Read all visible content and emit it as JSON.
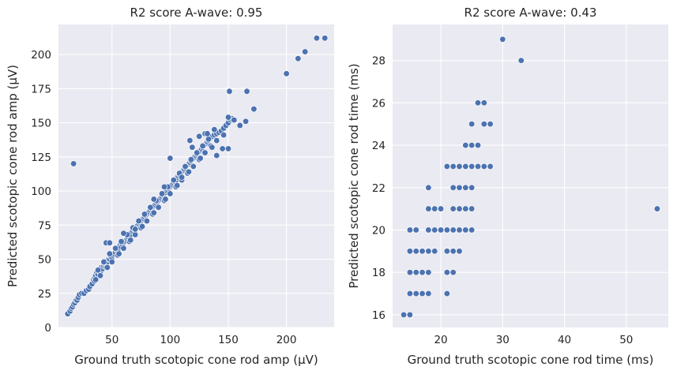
{
  "chart_data": [
    {
      "type": "scatter",
      "title": "R2 score A-wave: 0.95",
      "xlabel": "Ground truth scotopic cone rod amp (µV)",
      "ylabel": "Predicted scotopic cone rod amp (µV)",
      "xlim": [
        4,
        241
      ],
      "ylim": [
        0,
        222
      ],
      "xticks": [
        50,
        100,
        150,
        200
      ],
      "yticks": [
        0,
        25,
        50,
        75,
        100,
        125,
        150,
        175,
        200
      ],
      "grid": true,
      "color": "#4c72b0",
      "points": [
        [
          12,
          10
        ],
        [
          14,
          12
        ],
        [
          15,
          14
        ],
        [
          16,
          15
        ],
        [
          17,
          17
        ],
        [
          18,
          18
        ],
        [
          19,
          20
        ],
        [
          20,
          20
        ],
        [
          21,
          22
        ],
        [
          22,
          24
        ],
        [
          24,
          25
        ],
        [
          26,
          25
        ],
        [
          28,
          27
        ],
        [
          30,
          28
        ],
        [
          31,
          30
        ],
        [
          33,
          32
        ],
        [
          34,
          35
        ],
        [
          35,
          36
        ],
        [
          36,
          38
        ],
        [
          37,
          40
        ],
        [
          38,
          39
        ],
        [
          39,
          41
        ],
        [
          40,
          40
        ],
        [
          41,
          44
        ],
        [
          42,
          43
        ],
        [
          43,
          45
        ],
        [
          44,
          46
        ],
        [
          45,
          47
        ],
        [
          46,
          48
        ],
        [
          47,
          50
        ],
        [
          48,
          50
        ],
        [
          49,
          52
        ],
        [
          50,
          51
        ],
        [
          51,
          53
        ],
        [
          52,
          54
        ],
        [
          53,
          55
        ],
        [
          54,
          57
        ],
        [
          55,
          56
        ],
        [
          56,
          58
        ],
        [
          57,
          60
        ],
        [
          58,
          59
        ],
        [
          59,
          61
        ],
        [
          60,
          62
        ],
        [
          61,
          63
        ],
        [
          62,
          64
        ],
        [
          63,
          65
        ],
        [
          64,
          66
        ],
        [
          65,
          67
        ],
        [
          66,
          68
        ],
        [
          67,
          70
        ],
        [
          68,
          71
        ],
        [
          69,
          72
        ],
        [
          70,
          72
        ],
        [
          71,
          74
        ],
        [
          72,
          75
        ],
        [
          73,
          76
        ],
        [
          74,
          77
        ],
        [
          75,
          78
        ],
        [
          76,
          79
        ],
        [
          77,
          80
        ],
        [
          78,
          81
        ],
        [
          79,
          82
        ],
        [
          80,
          83
        ],
        [
          81,
          84
        ],
        [
          82,
          85
        ],
        [
          83,
          86
        ],
        [
          84,
          87
        ],
        [
          85,
          88
        ],
        [
          86,
          89
        ],
        [
          87,
          90
        ],
        [
          88,
          91
        ],
        [
          89,
          92
        ],
        [
          90,
          93
        ],
        [
          91,
          94
        ],
        [
          92,
          95
        ],
        [
          93,
          96
        ],
        [
          94,
          97
        ],
        [
          95,
          98
        ],
        [
          96,
          99
        ],
        [
          97,
          100
        ],
        [
          98,
          101
        ],
        [
          99,
          102
        ],
        [
          100,
          103
        ],
        [
          101,
          104
        ],
        [
          102,
          105
        ],
        [
          103,
          106
        ],
        [
          104,
          107
        ],
        [
          105,
          108
        ],
        [
          106,
          110
        ],
        [
          107,
          111
        ],
        [
          108,
          112
        ],
        [
          109,
          113
        ],
        [
          110,
          114
        ],
        [
          111,
          115
        ],
        [
          112,
          116
        ],
        [
          113,
          117
        ],
        [
          114,
          118
        ],
        [
          115,
          119
        ],
        [
          116,
          120
        ],
        [
          117,
          121
        ],
        [
          118,
          122
        ],
        [
          119,
          123
        ],
        [
          120,
          124
        ],
        [
          121,
          125
        ],
        [
          122,
          126
        ],
        [
          123,
          127
        ],
        [
          124,
          128
        ],
        [
          125,
          129
        ],
        [
          126,
          130
        ],
        [
          127,
          131
        ],
        [
          128,
          132
        ],
        [
          129,
          133
        ],
        [
          130,
          134
        ],
        [
          131,
          135
        ],
        [
          132,
          136
        ],
        [
          133,
          137
        ],
        [
          134,
          138
        ],
        [
          135,
          139
        ],
        [
          136,
          140
        ],
        [
          138,
          141
        ],
        [
          140,
          142
        ],
        [
          142,
          143
        ],
        [
          144,
          144
        ],
        [
          146,
          146
        ],
        [
          148,
          148
        ],
        [
          150,
          150
        ],
        [
          152,
          152
        ],
        [
          153,
          153
        ],
        [
          35,
          34
        ],
        [
          40,
          38
        ],
        [
          45,
          44
        ],
        [
          50,
          48
        ],
        [
          55,
          53
        ],
        [
          60,
          58
        ],
        [
          65,
          63
        ],
        [
          70,
          68
        ],
        [
          75,
          73
        ],
        [
          80,
          78
        ],
        [
          85,
          83
        ],
        [
          90,
          88
        ],
        [
          95,
          93
        ],
        [
          100,
          98
        ],
        [
          105,
          103
        ],
        [
          110,
          108
        ],
        [
          115,
          113
        ],
        [
          120,
          118
        ],
        [
          125,
          123
        ],
        [
          130,
          128
        ],
        [
          135,
          133
        ],
        [
          140,
          137
        ],
        [
          38,
          42
        ],
        [
          43,
          48
        ],
        [
          48,
          54
        ],
        [
          53,
          58
        ],
        [
          58,
          63
        ],
        [
          63,
          68
        ],
        [
          68,
          73
        ],
        [
          73,
          78
        ],
        [
          78,
          83
        ],
        [
          83,
          88
        ],
        [
          88,
          93
        ],
        [
          93,
          98
        ],
        [
          98,
          103
        ],
        [
          103,
          108
        ],
        [
          108,
          113
        ],
        [
          113,
          118
        ],
        [
          118,
          123
        ],
        [
          123,
          128
        ],
        [
          128,
          133
        ],
        [
          133,
          138
        ],
        [
          36,
          35
        ],
        [
          46,
          44
        ],
        [
          56,
          54
        ],
        [
          66,
          64
        ],
        [
          76,
          74
        ],
        [
          86,
          84
        ],
        [
          96,
          94
        ],
        [
          106,
          104
        ],
        [
          116,
          114
        ],
        [
          126,
          124
        ],
        [
          136,
          132
        ],
        [
          146,
          141
        ],
        [
          17,
          120
        ],
        [
          45,
          62
        ],
        [
          48,
          62
        ],
        [
          60,
          69
        ],
        [
          70,
          72
        ],
        [
          86,
          94
        ],
        [
          95,
          103
        ],
        [
          100,
          124
        ],
        [
          110,
          110
        ],
        [
          117,
          137
        ],
        [
          119,
          132
        ],
        [
          125,
          140
        ],
        [
          130,
          142
        ],
        [
          132,
          142
        ],
        [
          138,
          145
        ],
        [
          140,
          126
        ],
        [
          145,
          131
        ],
        [
          150,
          154
        ],
        [
          151,
          173
        ],
        [
          155,
          152
        ],
        [
          160,
          148
        ],
        [
          165,
          151
        ],
        [
          166,
          173
        ],
        [
          172,
          160
        ],
        [
          150,
          131
        ],
        [
          200,
          186
        ],
        [
          210,
          197
        ],
        [
          216,
          202
        ],
        [
          226,
          212
        ],
        [
          233,
          212
        ]
      ]
    },
    {
      "type": "scatter",
      "title": "R2 score A-wave: 0.43",
      "xlabel": "Ground truth scotopic cone rod time (ms)",
      "ylabel": "Predicted scotopic cone rod time (ms)",
      "xlim": [
        12.2,
        56.8
      ],
      "ylim": [
        15.4,
        29.7
      ],
      "xticks": [
        20,
        30,
        40,
        50
      ],
      "yticks": [
        16,
        18,
        20,
        22,
        24,
        26,
        28
      ],
      "grid": true,
      "color": "#4c72b0",
      "points": [
        [
          14,
          16
        ],
        [
          15,
          16
        ],
        [
          15,
          17
        ],
        [
          16,
          17
        ],
        [
          17,
          17
        ],
        [
          18,
          17
        ],
        [
          21,
          17
        ],
        [
          15,
          18
        ],
        [
          16,
          18
        ],
        [
          17,
          18
        ],
        [
          18,
          18
        ],
        [
          21,
          18
        ],
        [
          22,
          18
        ],
        [
          15,
          19
        ],
        [
          16,
          19
        ],
        [
          17,
          19
        ],
        [
          18,
          19
        ],
        [
          19,
          19
        ],
        [
          21,
          19
        ],
        [
          22,
          19
        ],
        [
          23,
          19
        ],
        [
          15,
          20
        ],
        [
          16,
          20
        ],
        [
          18,
          20
        ],
        [
          19,
          20
        ],
        [
          20,
          20
        ],
        [
          21,
          20
        ],
        [
          22,
          20
        ],
        [
          23,
          20
        ],
        [
          24,
          20
        ],
        [
          25,
          20
        ],
        [
          18,
          21
        ],
        [
          19,
          21
        ],
        [
          20,
          21
        ],
        [
          22,
          21
        ],
        [
          23,
          21
        ],
        [
          24,
          21
        ],
        [
          25,
          21
        ],
        [
          18,
          22
        ],
        [
          22,
          22
        ],
        [
          23,
          22
        ],
        [
          24,
          22
        ],
        [
          25,
          22
        ],
        [
          21,
          23
        ],
        [
          22,
          23
        ],
        [
          23,
          23
        ],
        [
          24,
          23
        ],
        [
          25,
          23
        ],
        [
          26,
          23
        ],
        [
          27,
          23
        ],
        [
          28,
          23
        ],
        [
          24,
          24
        ],
        [
          25,
          24
        ],
        [
          26,
          24
        ],
        [
          25,
          25
        ],
        [
          27,
          25
        ],
        [
          28,
          25
        ],
        [
          26,
          26
        ],
        [
          27,
          26
        ],
        [
          33,
          28
        ],
        [
          30,
          29
        ],
        [
          55,
          21
        ]
      ]
    }
  ]
}
